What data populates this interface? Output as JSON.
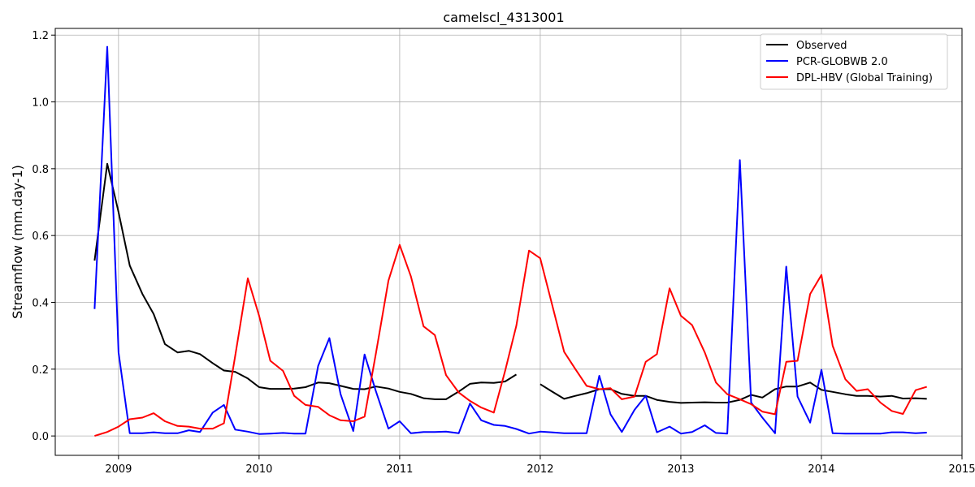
{
  "chart_data": {
    "type": "line",
    "title": "camelscl_4313001",
    "xlabel": "",
    "ylabel": "Streamflow (mm.day-1)",
    "xlim": [
      2008.55,
      2015.0
    ],
    "ylim": [
      -0.058,
      1.22
    ],
    "x_ticks": [
      2009,
      2010,
      2011,
      2012,
      2013,
      2014,
      2015
    ],
    "x_tick_labels": [
      "2009",
      "2010",
      "2011",
      "2012",
      "2013",
      "2014",
      "2015"
    ],
    "y_ticks": [
      0.0,
      0.2,
      0.4,
      0.6,
      0.8,
      1.0,
      1.2
    ],
    "y_tick_labels": [
      "0.0",
      "0.2",
      "0.4",
      "0.6",
      "0.8",
      "1.0",
      "1.2"
    ],
    "grid": true,
    "legend_position": "upper right",
    "x": [
      2008.83,
      2008.92,
      2009.0,
      2009.08,
      2009.17,
      2009.25,
      2009.33,
      2009.42,
      2009.5,
      2009.58,
      2009.67,
      2009.75,
      2009.83,
      2009.92,
      2010.0,
      2010.08,
      2010.17,
      2010.25,
      2010.33,
      2010.42,
      2010.5,
      2010.58,
      2010.67,
      2010.75,
      2010.83,
      2010.92,
      2011.0,
      2011.08,
      2011.17,
      2011.25,
      2011.33,
      2011.42,
      2011.5,
      2011.58,
      2011.67,
      2011.75,
      2011.83,
      2011.92,
      2012.0,
      2012.08,
      2012.17,
      2012.25,
      2012.33,
      2012.42,
      2012.5,
      2012.58,
      2012.67,
      2012.75,
      2012.83,
      2012.92,
      2013.0,
      2013.08,
      2013.17,
      2013.25,
      2013.33,
      2013.42,
      2013.5,
      2013.58,
      2013.67,
      2013.75,
      2013.83,
      2013.92,
      2014.0,
      2014.08,
      2014.17,
      2014.25,
      2014.33,
      2014.42,
      2014.5,
      2014.58,
      2014.67,
      2014.75
    ],
    "series": [
      {
        "name": "Observed",
        "color": "#000000",
        "values": [
          0.525,
          0.815,
          0.67,
          0.51,
          0.425,
          0.365,
          0.275,
          0.25,
          0.255,
          0.245,
          0.218,
          0.196,
          0.192,
          0.172,
          0.146,
          0.141,
          0.141,
          0.142,
          0.146,
          0.16,
          0.158,
          0.15,
          0.141,
          0.14,
          0.148,
          0.142,
          0.132,
          0.126,
          0.113,
          0.11,
          0.11,
          0.133,
          0.156,
          0.16,
          0.159,
          0.163,
          0.184,
          null,
          0.155,
          0.134,
          0.111,
          0.12,
          0.128,
          0.14,
          0.14,
          0.126,
          0.12,
          0.12,
          0.108,
          0.102,
          0.099,
          0.1,
          0.101,
          0.1,
          0.1,
          0.108,
          0.123,
          0.115,
          0.14,
          0.148,
          0.148,
          0.16,
          0.138,
          0.132,
          0.125,
          0.12,
          0.12,
          0.118,
          0.12,
          0.112,
          0.113,
          0.111
        ]
      },
      {
        "name": "PCR-GLOBWB 2.0",
        "color": "#0000ff",
        "values": [
          0.38,
          1.165,
          0.25,
          0.008,
          0.008,
          0.011,
          0.008,
          0.008,
          0.017,
          0.012,
          0.07,
          0.093,
          0.019,
          0.013,
          0.006,
          0.007,
          0.009,
          0.007,
          0.007,
          0.21,
          0.293,
          0.125,
          0.015,
          0.244,
          0.135,
          0.022,
          0.044,
          0.008,
          0.012,
          0.012,
          0.013,
          0.008,
          0.097,
          0.047,
          0.033,
          0.03,
          0.021,
          0.007,
          0.013,
          0.011,
          0.008,
          0.008,
          0.008,
          0.18,
          0.065,
          0.012,
          0.078,
          0.12,
          0.011,
          0.028,
          0.007,
          0.012,
          0.032,
          0.009,
          0.007,
          0.826,
          0.1,
          0.055,
          0.008,
          0.507,
          0.118,
          0.04,
          0.198,
          0.008,
          0.007,
          0.007,
          0.007,
          0.007,
          0.011,
          0.011,
          0.008,
          0.01
        ]
      },
      {
        "name": "DPL-HBV (Global Training)",
        "color": "#ff0000",
        "values": [
          0.0,
          0.012,
          0.028,
          0.05,
          0.055,
          0.068,
          0.044,
          0.03,
          0.028,
          0.022,
          0.022,
          0.038,
          0.24,
          0.472,
          0.36,
          0.225,
          0.195,
          0.12,
          0.093,
          0.087,
          0.062,
          0.047,
          0.044,
          0.058,
          0.245,
          0.465,
          0.572,
          0.478,
          0.328,
          0.302,
          0.182,
          0.13,
          0.105,
          0.085,
          0.07,
          0.195,
          0.33,
          0.555,
          0.532,
          0.4,
          0.252,
          0.2,
          0.15,
          0.14,
          0.143,
          0.11,
          0.118,
          0.222,
          0.245,
          0.442,
          0.36,
          0.332,
          0.25,
          0.16,
          0.125,
          0.11,
          0.095,
          0.073,
          0.065,
          0.222,
          0.225,
          0.425,
          0.482,
          0.27,
          0.17,
          0.135,
          0.14,
          0.1,
          0.075,
          0.066,
          0.137,
          0.147
        ]
      }
    ]
  }
}
